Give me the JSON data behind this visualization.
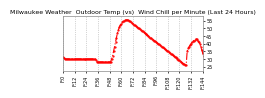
{
  "title": "Milwaukee Weather  Outdoor Temp (vs)  Wind Chill per Minute (Last 24 Hours)",
  "line_color": "#ff0000",
  "line_style": "-.",
  "line_width": 0.8,
  "marker": ".",
  "marker_size": 1.2,
  "background_color": "#ffffff",
  "plot_bg_color": "#ffffff",
  "grid_color": "#aaaaaa",
  "grid_style": ":",
  "ylim": [
    22,
    58
  ],
  "xlim": [
    0,
    144
  ],
  "title_fontsize": 4.5,
  "tick_fontsize": 3.5,
  "y_values": [
    31,
    30.5,
    30,
    30,
    30,
    30,
    30,
    30,
    30,
    30,
    30,
    30,
    30,
    30,
    30,
    30,
    30,
    30,
    30,
    30,
    30,
    30,
    30,
    30,
    30,
    30,
    30,
    30,
    30,
    30,
    30,
    30,
    30,
    30,
    29,
    28,
    28,
    28,
    28,
    28,
    28,
    28,
    28,
    28,
    28,
    28,
    28,
    28,
    28,
    28,
    30,
    32,
    35,
    38,
    41,
    44,
    47,
    49,
    51,
    52,
    53,
    54,
    54.5,
    55,
    55.2,
    55.5,
    55.5,
    55.3,
    55,
    54.5,
    54,
    53.5,
    53,
    52.5,
    52,
    51.5,
    51,
    50.5,
    50,
    49.5,
    49,
    48.5,
    48,
    47.5,
    47,
    46.5,
    46,
    45.5,
    45,
    44.5,
    44,
    43.5,
    43,
    42.5,
    42,
    41.5,
    41,
    40.5,
    40,
    39.5,
    39,
    38.5,
    38,
    37.5,
    37,
    36.5,
    36,
    35.5,
    35,
    34.5,
    34,
    33.5,
    33,
    32.5,
    32,
    31.5,
    31,
    30.5,
    30,
    29.5,
    29,
    28.5,
    28,
    27.5,
    27,
    26.5,
    26,
    26,
    35,
    37,
    38,
    39,
    40,
    41,
    41.5,
    42,
    42.5,
    43,
    43,
    42,
    41,
    40,
    38,
    36,
    34,
    32,
    30,
    29
  ],
  "x_tick_positions": [
    0,
    12,
    24,
    36,
    48,
    60,
    72,
    84,
    96,
    108,
    120,
    132,
    144
  ],
  "x_tick_labels": [
    "F:0",
    "F:12",
    "F:24",
    "F:36",
    "F:48",
    "F:60",
    "F:72",
    "F:84",
    "F:96",
    "F:108",
    "F:120",
    "F:132",
    "F:144"
  ],
  "y_ticks": [
    25,
    30,
    35,
    40,
    45,
    50,
    55
  ]
}
